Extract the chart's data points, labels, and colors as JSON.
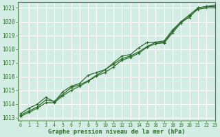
{
  "title": "Graphe pression niveau de la mer (hPa)",
  "bg_color": "#d4ede4",
  "plot_bg_color": "#d4ede4",
  "grid_color": "#ffffff",
  "line_color": "#2d6a2d",
  "marker_color": "#2d6a2d",
  "spine_color": "#4a7a4a",
  "ylim": [
    1012.8,
    1021.4
  ],
  "xlim": [
    -0.3,
    23
  ],
  "yticks": [
    1013,
    1014,
    1015,
    1016,
    1017,
    1018,
    1019,
    1020,
    1021
  ],
  "xticks": [
    0,
    1,
    2,
    3,
    4,
    5,
    6,
    7,
    8,
    9,
    10,
    11,
    12,
    13,
    14,
    15,
    16,
    17,
    18,
    19,
    20,
    21,
    22,
    23
  ],
  "series": [
    [
      1013.2,
      1013.5,
      1013.8,
      1014.3,
      1014.2,
      1014.7,
      1015.2,
      1015.4,
      1015.7,
      1016.1,
      1016.5,
      1016.9,
      1017.3,
      1017.5,
      1017.8,
      1018.2,
      1018.5,
      1018.5,
      1019.3,
      1020.0,
      1020.5,
      1021.0,
      1021.1,
      1021.1
    ],
    [
      1013.3,
      1013.7,
      1014.0,
      1014.5,
      1014.15,
      1014.9,
      1015.3,
      1015.5,
      1016.1,
      1016.3,
      1016.5,
      1017.0,
      1017.5,
      1017.6,
      1018.1,
      1018.5,
      1018.5,
      1018.6,
      1019.4,
      1020.0,
      1020.3,
      1021.0,
      1021.1,
      1021.2
    ],
    [
      1013.1,
      1013.4,
      1013.7,
      1014.1,
      1014.1,
      1014.6,
      1015.0,
      1015.3,
      1015.65,
      1016.05,
      1016.3,
      1016.7,
      1017.2,
      1017.4,
      1017.7,
      1018.15,
      1018.4,
      1018.45,
      1019.2,
      1019.9,
      1020.4,
      1020.9,
      1021.0,
      1021.0
    ]
  ],
  "tick_fontsize": 5.5,
  "xtick_fontsize": 4.8,
  "label_fontsize": 6.2
}
